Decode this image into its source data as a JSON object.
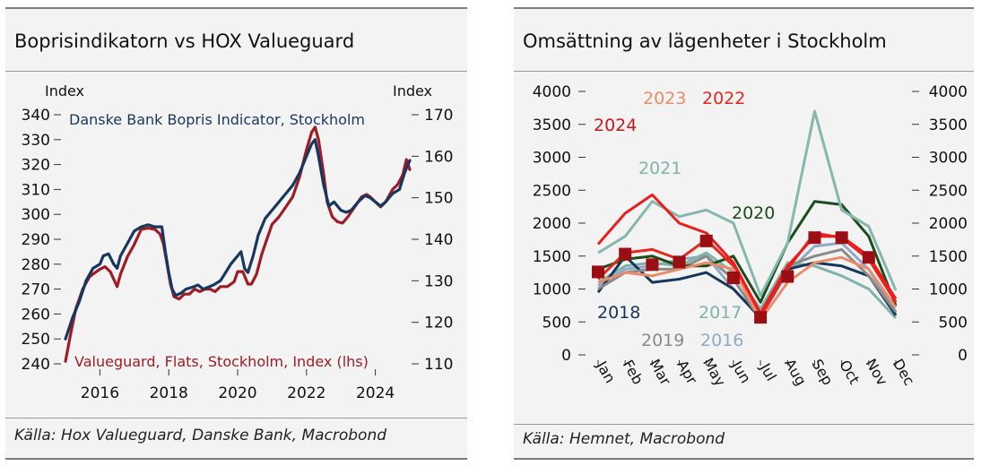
{
  "panels": {
    "left": {
      "title": "Boprisindikatorn vs HOX Valueguard",
      "source": "Källa: Hox Valueguard, Danske Bank, Macrobond"
    },
    "right": {
      "title": "Omsättning av lägenheter i Stockholm",
      "source": "Källa: Hemnet, Macrobond"
    }
  },
  "chart_data": [
    {
      "type": "line",
      "title": "Boprisindikatorn vs HOX Valueguard",
      "x_ticks": [
        2016,
        2018,
        2020,
        2022,
        2024
      ],
      "x_range": [
        2015.0,
        2025.0
      ],
      "y_left": {
        "label": "Index",
        "range": [
          240,
          340
        ],
        "ticks": [
          240,
          250,
          260,
          270,
          280,
          290,
          300,
          310,
          320,
          330,
          340
        ]
      },
      "y_right": {
        "label": "Index",
        "range": [
          110,
          170
        ],
        "ticks": [
          110,
          120,
          130,
          140,
          150,
          160,
          170
        ]
      },
      "grid": false,
      "series": [
        {
          "name": "Danske Bank Bopris Indicator, Stockholm",
          "axis": "right",
          "color": "#17375e",
          "points": [
            [
              2015.0,
              116
            ],
            [
              2015.2,
              121
            ],
            [
              2015.4,
              125
            ],
            [
              2015.6,
              130
            ],
            [
              2015.8,
              133
            ],
            [
              2016.0,
              134
            ],
            [
              2016.1,
              136
            ],
            [
              2016.25,
              136.5
            ],
            [
              2016.4,
              134
            ],
            [
              2016.5,
              133
            ],
            [
              2016.6,
              136
            ],
            [
              2016.8,
              139
            ],
            [
              2017.0,
              142
            ],
            [
              2017.2,
              143
            ],
            [
              2017.4,
              143.5
            ],
            [
              2017.6,
              143
            ],
            [
              2017.8,
              143
            ],
            [
              2017.9,
              137
            ],
            [
              2018.0,
              132
            ],
            [
              2018.1,
              128
            ],
            [
              2018.2,
              126.5
            ],
            [
              2018.35,
              127
            ],
            [
              2018.5,
              128
            ],
            [
              2018.7,
              128.5
            ],
            [
              2018.85,
              129
            ],
            [
              2019.0,
              128
            ],
            [
              2019.15,
              128.5
            ],
            [
              2019.3,
              129
            ],
            [
              2019.5,
              130
            ],
            [
              2019.65,
              132
            ],
            [
              2019.8,
              134
            ],
            [
              2020.0,
              136
            ],
            [
              2020.1,
              137
            ],
            [
              2020.2,
              133
            ],
            [
              2020.3,
              132
            ],
            [
              2020.45,
              136
            ],
            [
              2020.6,
              141
            ],
            [
              2020.8,
              145
            ],
            [
              2021.0,
              147
            ],
            [
              2021.2,
              149
            ],
            [
              2021.4,
              151
            ],
            [
              2021.6,
              153
            ],
            [
              2021.8,
              156
            ],
            [
              2022.0,
              160
            ],
            [
              2022.15,
              163
            ],
            [
              2022.25,
              164
            ],
            [
              2022.35,
              160
            ],
            [
              2022.5,
              153
            ],
            [
              2022.65,
              148
            ],
            [
              2022.8,
              149
            ],
            [
              2023.0,
              147
            ],
            [
              2023.15,
              146.5
            ],
            [
              2023.3,
              147
            ],
            [
              2023.5,
              149
            ],
            [
              2023.7,
              150.5
            ],
            [
              2023.85,
              150
            ],
            [
              2024.0,
              149
            ],
            [
              2024.15,
              148
            ],
            [
              2024.3,
              149
            ],
            [
              2024.5,
              151
            ],
            [
              2024.7,
              152
            ],
            [
              2024.85,
              156
            ],
            [
              2025.0,
              159
            ]
          ]
        },
        {
          "name": "Valueguard, Flats, Stockholm, Index (lhs)",
          "axis": "left",
          "color": "#a01c24",
          "points": [
            [
              2015.0,
              241
            ],
            [
              2015.15,
              252
            ],
            [
              2015.3,
              262
            ],
            [
              2015.5,
              270
            ],
            [
              2015.7,
              275
            ],
            [
              2015.9,
              277
            ],
            [
              2016.0,
              278
            ],
            [
              2016.15,
              279
            ],
            [
              2016.3,
              277
            ],
            [
              2016.4,
              274
            ],
            [
              2016.5,
              271
            ],
            [
              2016.6,
              276
            ],
            [
              2016.8,
              283
            ],
            [
              2017.0,
              288
            ],
            [
              2017.2,
              294
            ],
            [
              2017.4,
              294.5
            ],
            [
              2017.6,
              294
            ],
            [
              2017.75,
              292
            ],
            [
              2017.85,
              288
            ],
            [
              2017.95,
              280
            ],
            [
              2018.05,
              272
            ],
            [
              2018.15,
              267
            ],
            [
              2018.3,
              266
            ],
            [
              2018.45,
              268
            ],
            [
              2018.6,
              268
            ],
            [
              2018.75,
              270
            ],
            [
              2018.9,
              269
            ],
            [
              2019.05,
              270
            ],
            [
              2019.2,
              270
            ],
            [
              2019.35,
              269
            ],
            [
              2019.5,
              271
            ],
            [
              2019.7,
              271
            ],
            [
              2019.9,
              273
            ],
            [
              2020.0,
              277
            ],
            [
              2020.15,
              277
            ],
            [
              2020.3,
              272
            ],
            [
              2020.4,
              272
            ],
            [
              2020.55,
              276
            ],
            [
              2020.7,
              284
            ],
            [
              2020.85,
              290
            ],
            [
              2021.0,
              296
            ],
            [
              2021.2,
              299
            ],
            [
              2021.4,
              303
            ],
            [
              2021.6,
              307
            ],
            [
              2021.8,
              315
            ],
            [
              2022.0,
              326
            ],
            [
              2022.15,
              333
            ],
            [
              2022.25,
              335
            ],
            [
              2022.35,
              330
            ],
            [
              2022.5,
              316
            ],
            [
              2022.6,
              305
            ],
            [
              2022.75,
              299
            ],
            [
              2022.9,
              297
            ],
            [
              2023.05,
              296.5
            ],
            [
              2023.2,
              299
            ],
            [
              2023.4,
              303
            ],
            [
              2023.6,
              307
            ],
            [
              2023.75,
              308
            ],
            [
              2023.85,
              307
            ],
            [
              2024.0,
              305
            ],
            [
              2024.15,
              303
            ],
            [
              2024.3,
              305
            ],
            [
              2024.5,
              310
            ],
            [
              2024.65,
              312
            ],
            [
              2024.8,
              316
            ],
            [
              2024.9,
              322
            ],
            [
              2025.0,
              318
            ]
          ]
        }
      ]
    },
    {
      "type": "line",
      "title": "Omsättning av lägenheter i Stockholm",
      "categories": [
        "Jan",
        "Feb",
        "Mar",
        "Apr",
        "May",
        "Jun",
        "Jul",
        "Aug",
        "Sep",
        "Oct",
        "Nov",
        "Dec"
      ],
      "y_left": {
        "range": [
          0,
          4000
        ],
        "ticks": [
          0,
          500,
          1000,
          1500,
          2000,
          2500,
          3000,
          3500,
          4000
        ]
      },
      "y_right": {
        "range": [
          0,
          4000
        ],
        "ticks": [
          0,
          500,
          1000,
          1500,
          2000,
          2500,
          3000,
          3500,
          4000
        ]
      },
      "grid": false,
      "series": [
        {
          "name": "2016",
          "color": "#8fa9c9",
          "values": [
            1050,
            1300,
            1350,
            1450,
            1500,
            1000,
            580,
            1250,
            1650,
            1700,
            1300,
            620
          ]
        },
        {
          "name": "2017",
          "color": "#7fb3a9",
          "values": [
            1100,
            1350,
            1400,
            1350,
            1550,
            1250,
            700,
            1400,
            1350,
            1200,
            1000,
            560
          ]
        },
        {
          "name": "2018",
          "color": "#16365c",
          "values": [
            950,
            1500,
            1100,
            1150,
            1250,
            1000,
            560,
            1300,
            1400,
            1350,
            1200,
            600
          ]
        },
        {
          "name": "2019",
          "color": "#8a8a8a",
          "values": [
            1000,
            1250,
            1300,
            1300,
            1500,
            1150,
            540,
            1350,
            1500,
            1600,
            1200,
            650
          ]
        },
        {
          "name": "2020",
          "color": "#1b4d1b",
          "values": [
            1300,
            1450,
            1500,
            1350,
            1350,
            1500,
            800,
            1700,
            2330,
            2280,
            1800,
            750
          ]
        },
        {
          "name": "2021",
          "color": "#85b7ae",
          "values": [
            1550,
            1800,
            2330,
            2100,
            2200,
            2000,
            900,
            1700,
            3700,
            2200,
            1950,
            980
          ]
        },
        {
          "name": "2022",
          "color": "#e8261c",
          "values": [
            1150,
            1550,
            1600,
            1450,
            1750,
            1350,
            580,
            1300,
            1850,
            1780,
            1450,
            800
          ]
        },
        {
          "name": "2023",
          "color": "#e98c69",
          "values": [
            1100,
            1250,
            1200,
            1300,
            1400,
            1300,
            530,
            1100,
            1400,
            1480,
            1300,
            720
          ]
        },
        {
          "name": "2024",
          "color": "#ee1c1c",
          "values": [
            1680,
            2150,
            2430,
            2000,
            1850,
            1400,
            630,
            1350,
            1800,
            1800,
            1500,
            850
          ],
          "markers": [
            1260,
            1530,
            1370,
            1410,
            1730,
            1170,
            570,
            1190,
            1780,
            1780,
            1480,
            null
          ]
        }
      ]
    }
  ],
  "text_labels": {
    "left": {
      "series_label_1": "Danske Bank Bopris Indicator, Stockholm",
      "series_label_2": "Valueguard, Flats, Stockholm, Index (lhs)"
    },
    "right": {
      "y2023": "2023",
      "y2022": "2022",
      "y2024": "2024",
      "y2021": "2021",
      "y2020": "2020",
      "y2018": "2018",
      "y2017": "2017",
      "y2019": "2019",
      "y2016": "2016"
    }
  }
}
